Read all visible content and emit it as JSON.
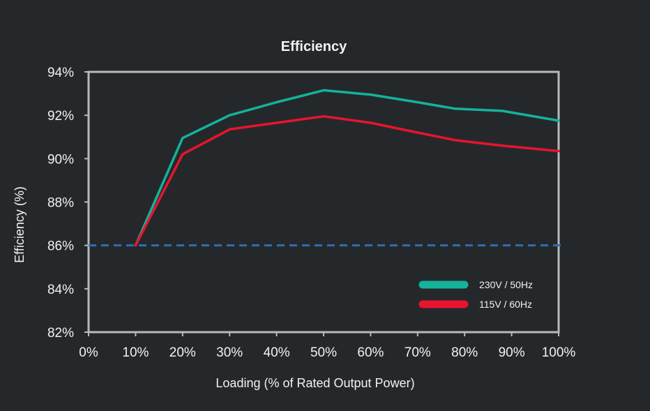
{
  "chart_data": {
    "type": "line",
    "title": "Efficiency",
    "xlabel": "Loading (% of Rated Output Power)",
    "ylabel": "Efficiency (%)",
    "x_ticks": [
      "0%",
      "10%",
      "20%",
      "30%",
      "40%",
      "50%",
      "60%",
      "70%",
      "80%",
      "90%",
      "100%"
    ],
    "y_ticks": [
      "82%",
      "84%",
      "86%",
      "88%",
      "90%",
      "92%",
      "94%"
    ],
    "xlim": [
      0,
      100
    ],
    "ylim": [
      82,
      94
    ],
    "grid": false,
    "legend_position": "bottom-right",
    "reference_line": {
      "y": 86,
      "style": "dashed",
      "color": "#2f6db3"
    },
    "series": [
      {
        "name": "230V / 50Hz",
        "color": "#14b39a",
        "x": [
          10,
          20,
          30,
          40,
          50,
          60,
          70,
          78,
          88,
          100
        ],
        "y": [
          86.0,
          90.95,
          92.0,
          92.6,
          93.15,
          92.95,
          92.6,
          92.3,
          92.2,
          91.75
        ]
      },
      {
        "name": "115V / 60Hz",
        "color": "#e8142d",
        "x": [
          10,
          20,
          30,
          40,
          50,
          60,
          70,
          78,
          88,
          100
        ],
        "y": [
          86.0,
          90.2,
          91.35,
          91.65,
          91.95,
          91.65,
          91.2,
          90.85,
          90.6,
          90.35
        ]
      }
    ]
  }
}
